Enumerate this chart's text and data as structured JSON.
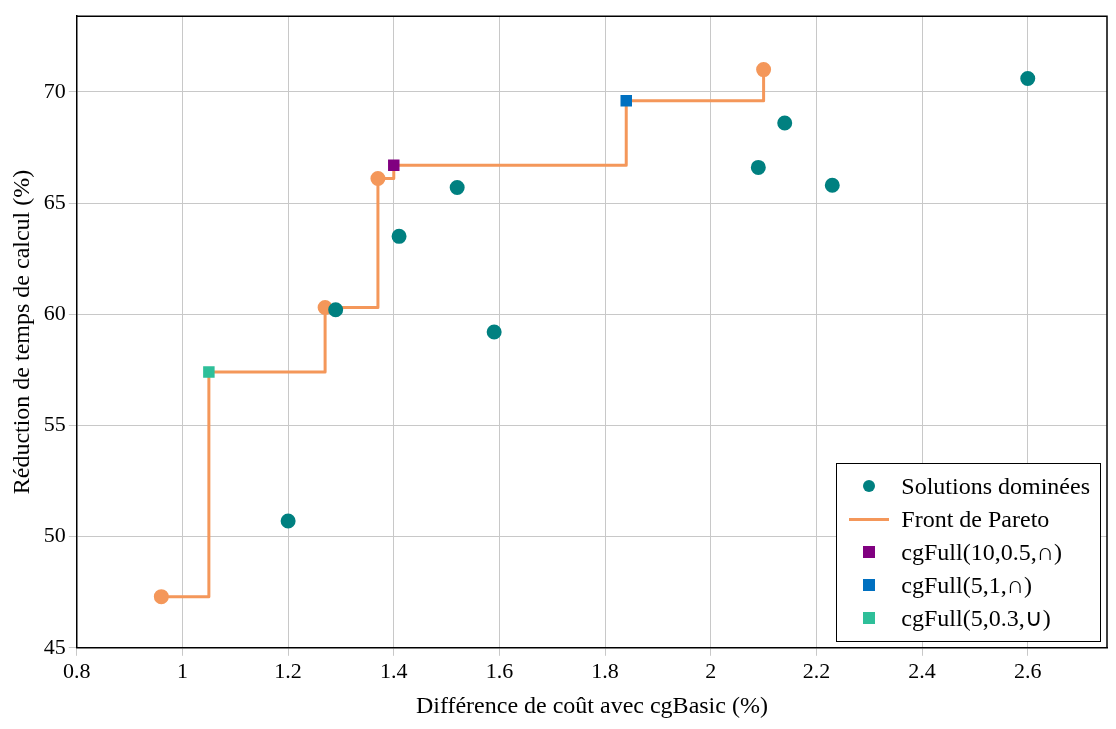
{
  "chart_data": {
    "type": "scatter",
    "xlabel": "Différence de coût avec cgBasic (%)",
    "ylabel": "Réduction de temps de calcul (%)",
    "xlim": [
      0.8,
      2.75
    ],
    "xticks": [
      0.8,
      1,
      1.2,
      1.4,
      1.6,
      1.8,
      2,
      2.2,
      2.4,
      2.6
    ],
    "ylim": [
      45,
      73.4
    ],
    "yticks": [
      45,
      50,
      55,
      60,
      65,
      70
    ],
    "grid": true,
    "legend": "bottom right",
    "series": [
      {
        "name": "Solutions dominées",
        "color": "#008080",
        "marker": "circle",
        "x": [
          1.2,
          1.29,
          1.41,
          1.52,
          1.59,
          2.09,
          2.14,
          2.23,
          2.6
        ],
        "values": [
          50.7,
          60.2,
          63.5,
          65.7,
          59.2,
          66.6,
          68.6,
          65.8,
          70.6
        ]
      },
      {
        "name": "Front de Pareto",
        "type": "step",
        "color": "#f4975a",
        "marker": "none",
        "x": [
          0.96,
          1.05,
          1.27,
          1.37,
          1.4,
          1.84,
          2.1
        ],
        "values": [
          47.3,
          57.4,
          60.3,
          66.1,
          66.7,
          69.6,
          71.0
        ]
      },
      {
        "color": "#f4975a",
        "marker": "circle",
        "x": [
          0.96,
          1.27,
          1.37,
          2.1
        ],
        "values": [
          47.3,
          60.3,
          66.1,
          71.0
        ]
      },
      {
        "name": "cgFull(10,0.5,∩)",
        "color": "#800080",
        "marker": "square",
        "x": [
          1.4
        ],
        "values": [
          66.7
        ]
      },
      {
        "name": "cgFull(5,1,∩)",
        "color": "#0070c0",
        "marker": "square",
        "x": [
          1.84
        ],
        "values": [
          69.6
        ]
      },
      {
        "name": "cgFull(5,0.3,∪)",
        "color": "#2ebf99",
        "marker": "square",
        "x": [
          1.05
        ],
        "values": [
          57.4
        ]
      }
    ]
  }
}
